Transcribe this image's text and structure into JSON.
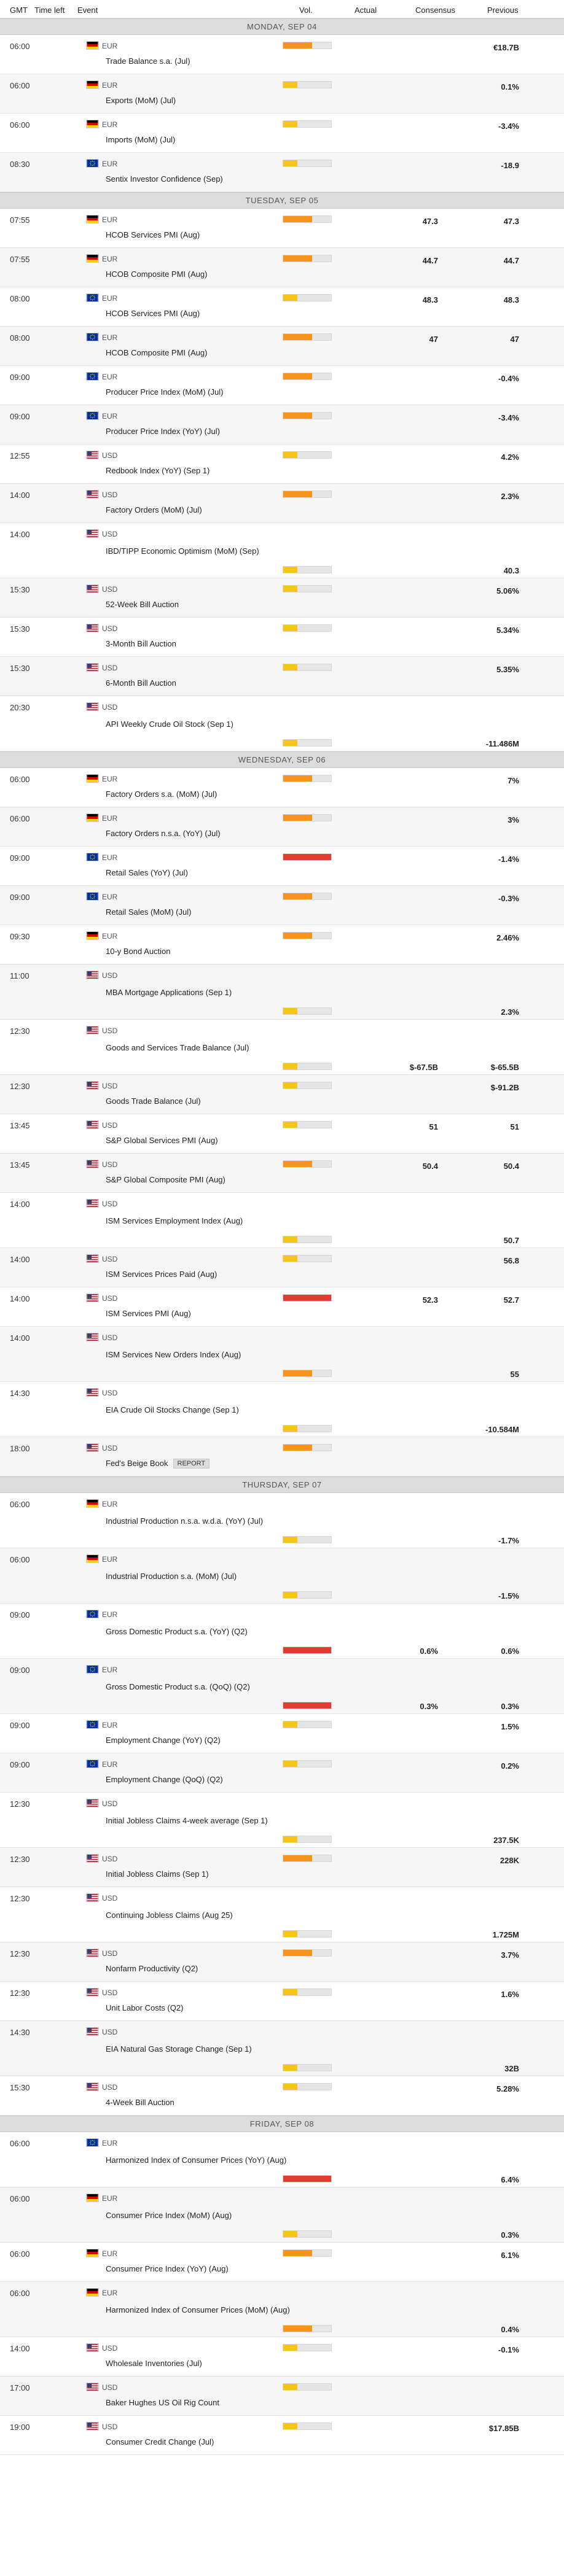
{
  "header": {
    "gmt": "GMT",
    "time_left": "Time left",
    "event": "Event",
    "vol": "Vol.",
    "actual": "Actual",
    "consensus": "Consensus",
    "previous": "Previous"
  },
  "colors": {
    "low": "#f5c518",
    "medium": "#f7941d",
    "high": "#e03c31"
  },
  "badge_label": "REPORT",
  "days": [
    {
      "label": "MONDAY, SEP 04",
      "events": [
        {
          "time": "06:00",
          "country": "de",
          "currency": "EUR",
          "name": "Trade Balance s.a. (Jul)",
          "impact": "medium",
          "actual": "",
          "consensus": "",
          "previous": "€18.7B"
        },
        {
          "time": "06:00",
          "country": "de",
          "currency": "EUR",
          "name": "Exports (MoM) (Jul)",
          "impact": "low",
          "actual": "",
          "consensus": "",
          "previous": "0.1%"
        },
        {
          "time": "06:00",
          "country": "de",
          "currency": "EUR",
          "name": "Imports (MoM) (Jul)",
          "impact": "low",
          "actual": "",
          "consensus": "",
          "previous": "-3.4%"
        },
        {
          "time": "08:30",
          "country": "eu",
          "currency": "EUR",
          "name": "Sentix Investor Confidence (Sep)",
          "impact": "low",
          "actual": "",
          "consensus": "",
          "previous": "-18.9"
        }
      ]
    },
    {
      "label": "TUESDAY, SEP 05",
      "events": [
        {
          "time": "07:55",
          "country": "de",
          "currency": "EUR",
          "name": "HCOB Services PMI (Aug)",
          "impact": "medium",
          "actual": "",
          "consensus": "47.3",
          "previous": "47.3"
        },
        {
          "time": "07:55",
          "country": "de",
          "currency": "EUR",
          "name": "HCOB Composite PMI (Aug)",
          "impact": "medium",
          "actual": "",
          "consensus": "44.7",
          "previous": "44.7"
        },
        {
          "time": "08:00",
          "country": "eu",
          "currency": "EUR",
          "name": "HCOB Services PMI (Aug)",
          "impact": "low",
          "actual": "",
          "consensus": "48.3",
          "previous": "48.3"
        },
        {
          "time": "08:00",
          "country": "eu",
          "currency": "EUR",
          "name": "HCOB Composite PMI (Aug)",
          "impact": "medium",
          "actual": "",
          "consensus": "47",
          "previous": "47"
        },
        {
          "time": "09:00",
          "country": "eu",
          "currency": "EUR",
          "name": "Producer Price Index (MoM) (Jul)",
          "impact": "medium",
          "actual": "",
          "consensus": "",
          "previous": "-0.4%"
        },
        {
          "time": "09:00",
          "country": "eu",
          "currency": "EUR",
          "name": "Producer Price Index (YoY) (Jul)",
          "impact": "medium",
          "actual": "",
          "consensus": "",
          "previous": "-3.4%"
        },
        {
          "time": "12:55",
          "country": "us",
          "currency": "USD",
          "name": "Redbook Index (YoY) (Sep 1)",
          "impact": "low",
          "actual": "",
          "consensus": "",
          "previous": "4.2%"
        },
        {
          "time": "14:00",
          "country": "us",
          "currency": "USD",
          "name": "Factory Orders (MoM) (Jul)",
          "impact": "medium",
          "actual": "",
          "consensus": "",
          "previous": "2.3%"
        },
        {
          "time": "14:00",
          "country": "us",
          "currency": "USD",
          "name": "IBD/TIPP Economic Optimism (MoM) (Sep)",
          "impact": "low",
          "actual": "",
          "consensus": "",
          "previous": "40.3",
          "tall": true
        },
        {
          "time": "15:30",
          "country": "us",
          "currency": "USD",
          "name": "52-Week Bill Auction",
          "impact": "low",
          "actual": "",
          "consensus": "",
          "previous": "5.06%"
        },
        {
          "time": "15:30",
          "country": "us",
          "currency": "USD",
          "name": "3-Month Bill Auction",
          "impact": "low",
          "actual": "",
          "consensus": "",
          "previous": "5.34%"
        },
        {
          "time": "15:30",
          "country": "us",
          "currency": "USD",
          "name": "6-Month Bill Auction",
          "impact": "low",
          "actual": "",
          "consensus": "",
          "previous": "5.35%"
        },
        {
          "time": "20:30",
          "country": "us",
          "currency": "USD",
          "name": "API Weekly Crude Oil Stock (Sep 1)",
          "impact": "low",
          "actual": "",
          "consensus": "",
          "previous": "-11.486M",
          "tall": true
        }
      ]
    },
    {
      "label": "WEDNESDAY, SEP 06",
      "events": [
        {
          "time": "06:00",
          "country": "de",
          "currency": "EUR",
          "name": "Factory Orders s.a. (MoM) (Jul)",
          "impact": "medium",
          "actual": "",
          "consensus": "",
          "previous": "7%"
        },
        {
          "time": "06:00",
          "country": "de",
          "currency": "EUR",
          "name": "Factory Orders n.s.a. (YoY) (Jul)",
          "impact": "medium",
          "actual": "",
          "consensus": "",
          "previous": "3%"
        },
        {
          "time": "09:00",
          "country": "eu",
          "currency": "EUR",
          "name": "Retail Sales (YoY) (Jul)",
          "impact": "high",
          "actual": "",
          "consensus": "",
          "previous": "-1.4%"
        },
        {
          "time": "09:00",
          "country": "eu",
          "currency": "EUR",
          "name": "Retail Sales (MoM) (Jul)",
          "impact": "medium",
          "actual": "",
          "consensus": "",
          "previous": "-0.3%"
        },
        {
          "time": "09:30",
          "country": "de",
          "currency": "EUR",
          "name": "10-y Bond Auction",
          "impact": "medium",
          "actual": "",
          "consensus": "",
          "previous": "2.46%"
        },
        {
          "time": "11:00",
          "country": "us",
          "currency": "USD",
          "name": "MBA Mortgage Applications (Sep 1)",
          "impact": "low",
          "actual": "",
          "consensus": "",
          "previous": "2.3%",
          "tall": true
        },
        {
          "time": "12:30",
          "country": "us",
          "currency": "USD",
          "name": "Goods and Services Trade Balance (Jul)",
          "impact": "low",
          "actual": "",
          "consensus": "$-67.5B",
          "previous": "$-65.5B",
          "tall": true
        },
        {
          "time": "12:30",
          "country": "us",
          "currency": "USD",
          "name": "Goods Trade Balance (Jul)",
          "impact": "low",
          "actual": "",
          "consensus": "",
          "previous": "$-91.2B"
        },
        {
          "time": "13:45",
          "country": "us",
          "currency": "USD",
          "name": "S&P Global Services PMI (Aug)",
          "impact": "low",
          "actual": "",
          "consensus": "51",
          "previous": "51"
        },
        {
          "time": "13:45",
          "country": "us",
          "currency": "USD",
          "name": "S&P Global Composite PMI (Aug)",
          "impact": "medium",
          "actual": "",
          "consensus": "50.4",
          "previous": "50.4"
        },
        {
          "time": "14:00",
          "country": "us",
          "currency": "USD",
          "name": "ISM Services Employment Index (Aug)",
          "impact": "low",
          "actual": "",
          "consensus": "",
          "previous": "50.7",
          "tall": true
        },
        {
          "time": "14:00",
          "country": "us",
          "currency": "USD",
          "name": "ISM Services Prices Paid (Aug)",
          "impact": "low",
          "actual": "",
          "consensus": "",
          "previous": "56.8"
        },
        {
          "time": "14:00",
          "country": "us",
          "currency": "USD",
          "name": "ISM Services PMI (Aug)",
          "impact": "high",
          "actual": "",
          "consensus": "52.3",
          "previous": "52.7"
        },
        {
          "time": "14:00",
          "country": "us",
          "currency": "USD",
          "name": "ISM Services New Orders Index (Aug)",
          "impact": "medium",
          "actual": "",
          "consensus": "",
          "previous": "55",
          "tall": true
        },
        {
          "time": "14:30",
          "country": "us",
          "currency": "USD",
          "name": "EIA Crude Oil Stocks Change (Sep 1)",
          "impact": "low",
          "actual": "",
          "consensus": "",
          "previous": "-10.584M",
          "tall": true
        },
        {
          "time": "18:00",
          "country": "us",
          "currency": "USD",
          "name": "Fed's Beige Book",
          "impact": "medium",
          "actual": "",
          "consensus": "",
          "previous": "",
          "badge": true
        }
      ]
    },
    {
      "label": "THURSDAY, SEP 07",
      "events": [
        {
          "time": "06:00",
          "country": "de",
          "currency": "EUR",
          "name": "Industrial Production n.s.a. w.d.a. (YoY) (Jul)",
          "impact": "low",
          "actual": "",
          "consensus": "",
          "previous": "-1.7%",
          "tall": true
        },
        {
          "time": "06:00",
          "country": "de",
          "currency": "EUR",
          "name": "Industrial Production s.a. (MoM) (Jul)",
          "impact": "low",
          "actual": "",
          "consensus": "",
          "previous": "-1.5%",
          "tall": true
        },
        {
          "time": "09:00",
          "country": "eu",
          "currency": "EUR",
          "name": "Gross Domestic Product s.a. (YoY) (Q2)",
          "impact": "high",
          "actual": "",
          "consensus": "0.6%",
          "previous": "0.6%",
          "tall": true
        },
        {
          "time": "09:00",
          "country": "eu",
          "currency": "EUR",
          "name": "Gross Domestic Product s.a. (QoQ) (Q2)",
          "impact": "high",
          "actual": "",
          "consensus": "0.3%",
          "previous": "0.3%",
          "tall": true
        },
        {
          "time": "09:00",
          "country": "eu",
          "currency": "EUR",
          "name": "Employment Change (YoY) (Q2)",
          "impact": "low",
          "actual": "",
          "consensus": "",
          "previous": "1.5%"
        },
        {
          "time": "09:00",
          "country": "eu",
          "currency": "EUR",
          "name": "Employment Change (QoQ) (Q2)",
          "impact": "low",
          "actual": "",
          "consensus": "",
          "previous": "0.2%"
        },
        {
          "time": "12:30",
          "country": "us",
          "currency": "USD",
          "name": "Initial Jobless Claims 4-week average (Sep 1)",
          "impact": "low",
          "actual": "",
          "consensus": "",
          "previous": "237.5K",
          "tall": true
        },
        {
          "time": "12:30",
          "country": "us",
          "currency": "USD",
          "name": "Initial Jobless Claims (Sep 1)",
          "impact": "medium",
          "actual": "",
          "consensus": "",
          "previous": "228K"
        },
        {
          "time": "12:30",
          "country": "us",
          "currency": "USD",
          "name": "Continuing Jobless Claims (Aug 25)",
          "impact": "low",
          "actual": "",
          "consensus": "",
          "previous": "1.725M",
          "tall": true
        },
        {
          "time": "12:30",
          "country": "us",
          "currency": "USD",
          "name": "Nonfarm Productivity (Q2)",
          "impact": "medium",
          "actual": "",
          "consensus": "",
          "previous": "3.7%"
        },
        {
          "time": "12:30",
          "country": "us",
          "currency": "USD",
          "name": "Unit Labor Costs (Q2)",
          "impact": "low",
          "actual": "",
          "consensus": "",
          "previous": "1.6%"
        },
        {
          "time": "14:30",
          "country": "us",
          "currency": "USD",
          "name": "EIA Natural Gas Storage Change (Sep 1)",
          "impact": "low",
          "actual": "",
          "consensus": "",
          "previous": "32B",
          "tall": true
        },
        {
          "time": "15:30",
          "country": "us",
          "currency": "USD",
          "name": "4-Week Bill Auction",
          "impact": "low",
          "actual": "",
          "consensus": "",
          "previous": "5.28%"
        }
      ]
    },
    {
      "label": "FRIDAY, SEP 08",
      "events": [
        {
          "time": "06:00",
          "country": "eu",
          "currency": "EUR",
          "name": "Harmonized Index of Consumer Prices (YoY) (Aug)",
          "impact": "high",
          "actual": "",
          "consensus": "",
          "previous": "6.4%",
          "tall": true
        },
        {
          "time": "06:00",
          "country": "de",
          "currency": "EUR",
          "name": "Consumer Price Index (MoM) (Aug)",
          "impact": "low",
          "actual": "",
          "consensus": "",
          "previous": "0.3%",
          "tall": true
        },
        {
          "time": "06:00",
          "country": "de",
          "currency": "EUR",
          "name": "Consumer Price Index (YoY) (Aug)",
          "impact": "medium",
          "actual": "",
          "consensus": "",
          "previous": "6.1%"
        },
        {
          "time": "06:00",
          "country": "de",
          "currency": "EUR",
          "name": "Harmonized Index of Consumer Prices (MoM) (Aug)",
          "impact": "medium",
          "actual": "",
          "consensus": "",
          "previous": "0.4%",
          "tall": true
        },
        {
          "time": "14:00",
          "country": "us",
          "currency": "USD",
          "name": "Wholesale Inventories (Jul)",
          "impact": "low",
          "actual": "",
          "consensus": "",
          "previous": "-0.1%"
        },
        {
          "time": "17:00",
          "country": "us",
          "currency": "USD",
          "name": "Baker Hughes US Oil Rig Count",
          "impact": "low",
          "actual": "",
          "consensus": "",
          "previous": ""
        },
        {
          "time": "19:00",
          "country": "us",
          "currency": "USD",
          "name": "Consumer Credit Change (Jul)",
          "impact": "low",
          "actual": "",
          "consensus": "",
          "previous": "$17.85B"
        }
      ]
    }
  ]
}
